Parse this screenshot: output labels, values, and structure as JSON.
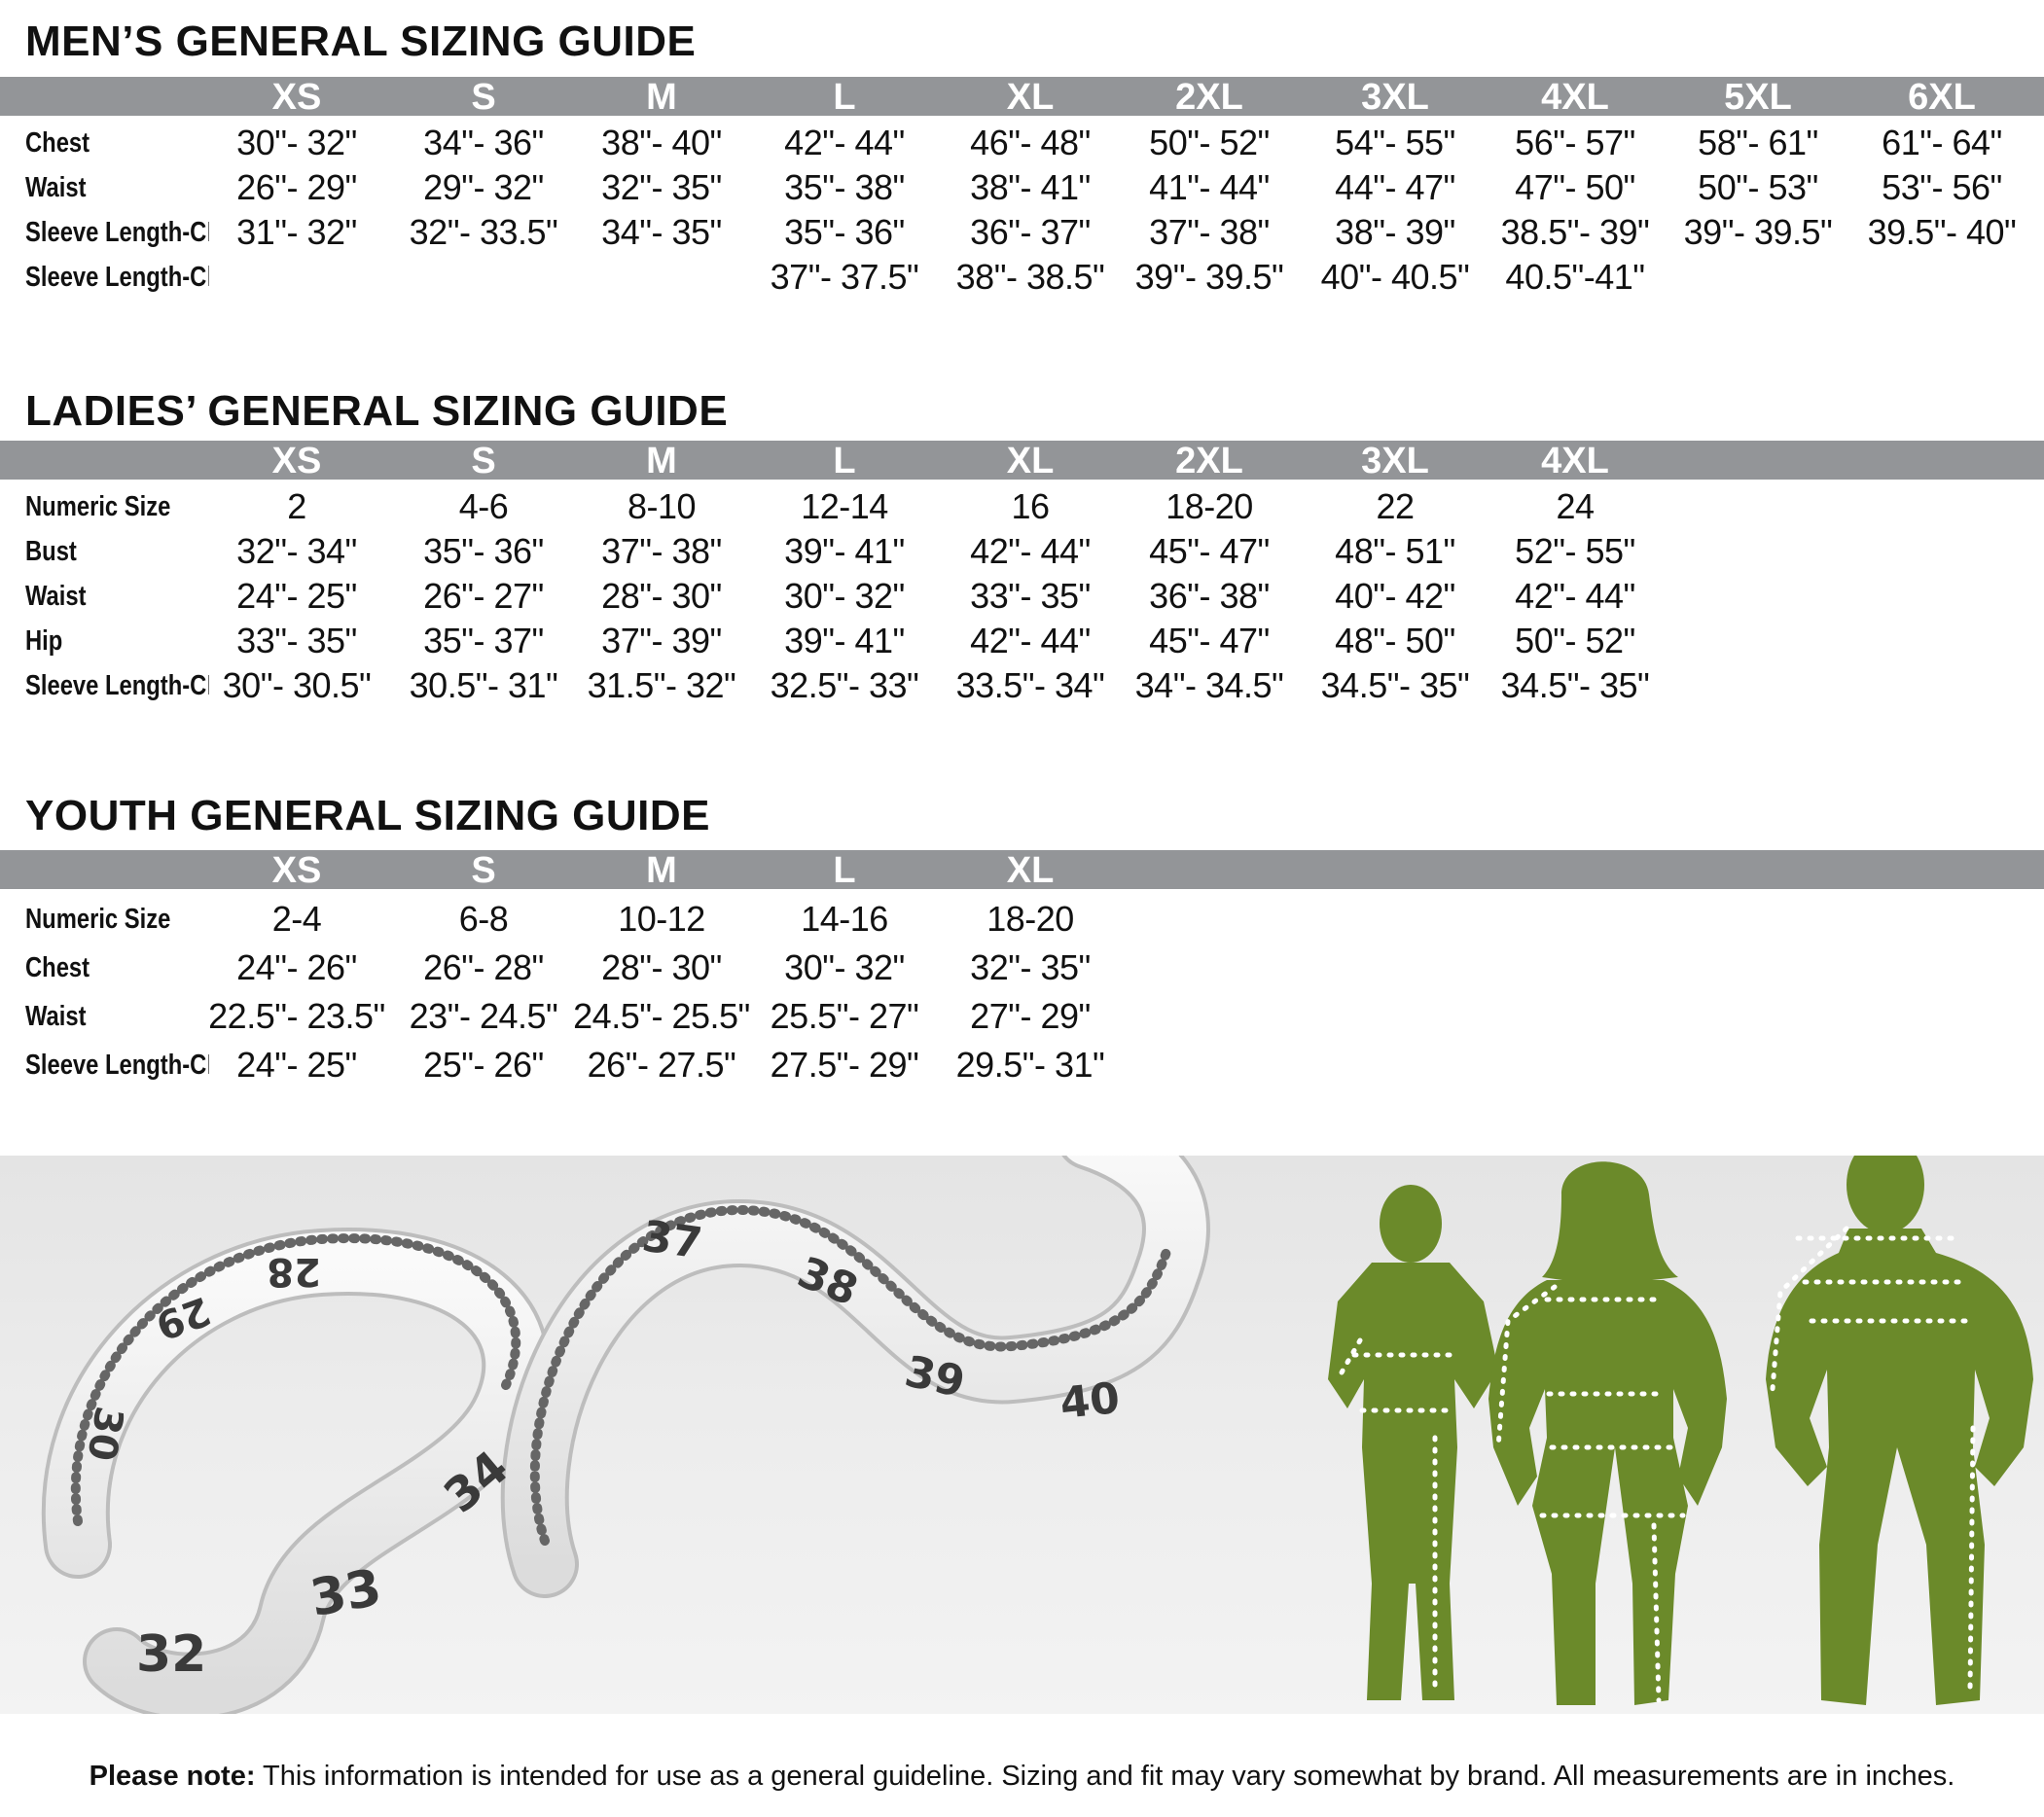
{
  "men": {
    "title": "MEN’S GENERAL SIZING GUIDE",
    "sizes": [
      "XS",
      "S",
      "M",
      "L",
      "XL",
      "2XL",
      "3XL",
      "4XL",
      "5XL",
      "6XL"
    ],
    "rows": [
      {
        "label": "Chest",
        "values": [
          "30\"- 32\"",
          "34\"- 36\"",
          "38\"- 40\"",
          "42\"- 44\"",
          "46\"- 48\"",
          "50\"- 52\"",
          "54\"- 55\"",
          "56\"- 57\"",
          "58\"- 61\"",
          "61\"- 64\""
        ]
      },
      {
        "label": "Waist",
        "values": [
          "26\"- 29\"",
          "29\"- 32\"",
          "32\"- 35\"",
          "35\"- 38\"",
          "38\"- 41\"",
          "41\"- 44\"",
          "44\"- 47\"",
          "47\"- 50\"",
          "50\"- 53\"",
          "53\"- 56\""
        ]
      },
      {
        "label": "Sleeve Length-CB",
        "values": [
          "31\"- 32\"",
          "32\"- 33.5\"",
          "34\"- 35\"",
          "35\"- 36\"",
          "36\"- 37\"",
          "37\"- 38\"",
          "38\"- 39\"",
          "38.5\"- 39\"",
          "39\"- 39.5\"",
          "39.5\"- 40\""
        ]
      },
      {
        "label": "Sleeve Length-Cl",
        "values": [
          "",
          "",
          "",
          "37\"- 37.5\"",
          "38\"- 38.5\"",
          "39\"- 39.5\"",
          "40\"- 40.5\"",
          "40.5\"-41\"",
          "",
          ""
        ]
      }
    ]
  },
  "ladies": {
    "title": "LADIES’ GENERAL SIZING GUIDE",
    "sizes": [
      "XS",
      "S",
      "M",
      "L",
      "XL",
      "2XL",
      "3XL",
      "4XL"
    ],
    "rows": [
      {
        "label": "Numeric Size",
        "values": [
          "2",
          "4-6",
          "8-10",
          "12-14",
          "16",
          "18-20",
          "22",
          "24"
        ]
      },
      {
        "label": "Bust",
        "values": [
          "32\"- 34\"",
          "35\"- 36\"",
          "37\"- 38\"",
          "39\"- 41\"",
          "42\"- 44\"",
          "45\"- 47\"",
          "48\"- 51\"",
          "52\"- 55\""
        ]
      },
      {
        "label": "Waist",
        "values": [
          "24\"- 25\"",
          "26\"- 27\"",
          "28\"- 30\"",
          "30\"- 32\"",
          "33\"- 35\"",
          "36\"- 38\"",
          "40\"- 42\"",
          "42\"- 44\""
        ]
      },
      {
        "label": "Hip",
        "values": [
          "33\"- 35\"",
          "35\"- 37\"",
          "37\"- 39\"",
          "39\"- 41\"",
          "42\"- 44\"",
          "45\"- 47\"",
          "48\"- 50\"",
          "50\"- 52\""
        ]
      },
      {
        "label": "Sleeve Length-CB",
        "values": [
          "30\"- 30.5\"",
          "30.5\"- 31\"",
          "31.5\"- 32\"",
          "32.5\"- 33\"",
          "33.5\"- 34\"",
          "34\"- 34.5\"",
          "34.5\"- 35\"",
          "34.5\"- 35\""
        ]
      }
    ]
  },
  "youth": {
    "title": "YOUTH GENERAL SIZING GUIDE",
    "sizes": [
      "XS",
      "S",
      "M",
      "L",
      "XL"
    ],
    "rows": [
      {
        "label": "Numeric Size",
        "values": [
          "2-4",
          "6-8",
          "10-12",
          "14-16",
          "18-20"
        ]
      },
      {
        "label": "Chest",
        "values": [
          "24\"- 26\"",
          "26\"- 28\"",
          "28\"- 30\"",
          "30\"- 32\"",
          "32\"- 35\""
        ]
      },
      {
        "label": "Waist",
        "values": [
          "22.5\"- 23.5\"",
          "23\"- 24.5\"",
          "24.5\"- 25.5\"",
          "25.5\"- 27\"",
          "27\"- 29\""
        ]
      },
      {
        "label": "Sleeve Length-CB",
        "values": [
          "24\"- 25\"",
          "25\"- 26\"",
          "26\"- 27.5\"",
          "27.5\"- 29\"",
          "29.5\"- 31\""
        ]
      }
    ]
  },
  "tape_numbers": [
    "28",
    "29",
    "30",
    "32",
    "33",
    "34",
    "37",
    "38",
    "39",
    "40"
  ],
  "note": {
    "bold": "Please note:",
    "text": " This information is intended for use as a general guideline. Sizing and fit may vary somewhat by brand.  All measurements are in inches."
  },
  "colors": {
    "header_bar": "#939598",
    "silhouette": "#6b8a2a",
    "photo_bg": "#e9e9e9"
  }
}
